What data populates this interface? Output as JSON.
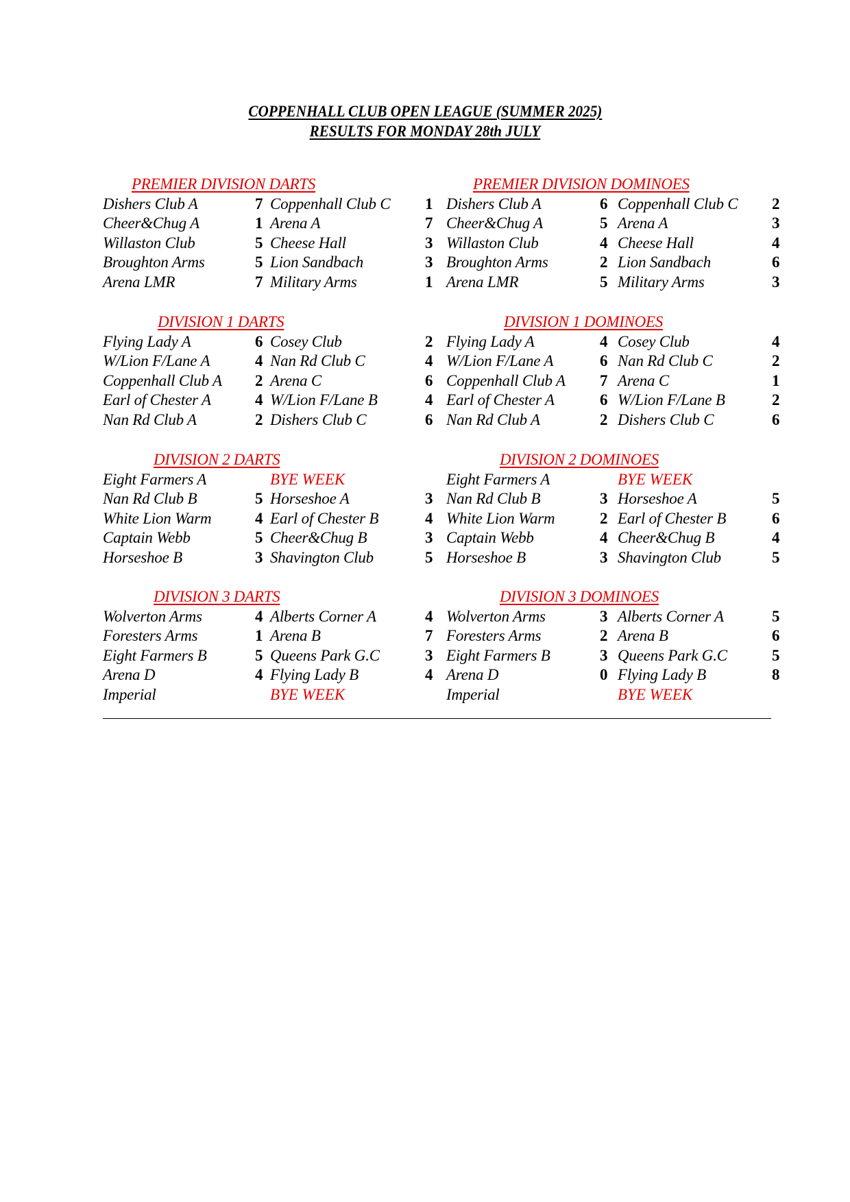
{
  "title": {
    "line1": "COPPENHALL CLUB OPEN LEAGUE (SUMMER 2025)",
    "line2": "RESULTS FOR MONDAY 28th JULY"
  },
  "colors": {
    "heading": "#e00000",
    "text": "#000000"
  },
  "sections": [
    {
      "darts_title": "PREMIER DIVISION DARTS",
      "dominoes_title": "PREMIER DIVISION DOMINOES",
      "darts": [
        {
          "home": "Dishers Club A",
          "home_score": "7",
          "away": "Coppenhall Club C",
          "away_score": "1"
        },
        {
          "home": "Cheer&Chug A",
          "home_score": "1",
          "away": "Arena A",
          "away_score": "7"
        },
        {
          "home": "Willaston Club",
          "home_score": "5",
          "away": "Cheese Hall",
          "away_score": "3"
        },
        {
          "home": "Broughton Arms",
          "home_score": "5",
          "away": "Lion Sandbach",
          "away_score": "3"
        },
        {
          "home": "Arena LMR",
          "home_score": "7",
          "away": "Military Arms",
          "away_score": "1"
        }
      ],
      "dominoes": [
        {
          "home": "Dishers Club A",
          "home_score": "6",
          "away": "Coppenhall Club C",
          "away_score": "2"
        },
        {
          "home": "Cheer&Chug A",
          "home_score": "5",
          "away": "Arena A",
          "away_score": "3"
        },
        {
          "home": "Willaston Club",
          "home_score": "4",
          "away": "Cheese Hall",
          "away_score": "4"
        },
        {
          "home": "Broughton Arms",
          "home_score": "2",
          "away": "Lion Sandbach",
          "away_score": "6"
        },
        {
          "home": "Arena LMR",
          "home_score": "5",
          "away": "Military Arms",
          "away_score": "3"
        }
      ]
    },
    {
      "darts_title": "DIVISION 1 DARTS",
      "dominoes_title": "DIVISION 1 DOMINOES",
      "darts": [
        {
          "home": "Flying Lady A",
          "home_score": "6",
          "away": "Cosey Club",
          "away_score": "2"
        },
        {
          "home": "W/Lion F/Lane A",
          "home_score": "4",
          "away": "Nan Rd Club C",
          "away_score": "4"
        },
        {
          "home": "Coppenhall Club A",
          "home_score": "2",
          "away": "Arena C",
          "away_score": "6"
        },
        {
          "home": "Earl of Chester A",
          "home_score": "4",
          "away": "W/Lion F/Lane B",
          "away_score": "4"
        },
        {
          "home": "Nan Rd Club A",
          "home_score": "2",
          "away": "Dishers Club C",
          "away_score": "6"
        }
      ],
      "dominoes": [
        {
          "home": "Flying Lady A",
          "home_score": "4",
          "away": "Cosey Club",
          "away_score": "4"
        },
        {
          "home": "W/Lion F/Lane A",
          "home_score": "6",
          "away": "Nan Rd Club C",
          "away_score": "2"
        },
        {
          "home": "Coppenhall Club A",
          "home_score": "7",
          "away": "Arena C",
          "away_score": "1"
        },
        {
          "home": "Earl of Chester A",
          "home_score": "6",
          "away": "W/Lion F/Lane B",
          "away_score": "2"
        },
        {
          "home": "Nan Rd Club A",
          "home_score": "2",
          "away": "Dishers Club C",
          "away_score": "6"
        }
      ]
    },
    {
      "darts_title": "DIVISION 2 DARTS",
      "dominoes_title": "DIVISION 2 DOMINOES",
      "darts": [
        {
          "home": "Eight Farmers A",
          "bye": "BYE WEEK"
        },
        {
          "home": "Nan Rd Club B",
          "home_score": "5",
          "away": "Horseshoe A",
          "away_score": "3"
        },
        {
          "home": "White Lion Warm",
          "home_score": "4",
          "away": "Earl of Chester B",
          "away_score": "4"
        },
        {
          "home": "Captain Webb",
          "home_score": "5",
          "away": "Cheer&Chug B",
          "away_score": "3"
        },
        {
          "home": "Horseshoe B",
          "home_score": "3",
          "away": "Shavington Club",
          "away_score": "5"
        }
      ],
      "dominoes": [
        {
          "home": "Eight Farmers A",
          "bye": "BYE WEEK"
        },
        {
          "home": "Nan Rd Club B",
          "home_score": "3",
          "away": "Horseshoe A",
          "away_score": "5"
        },
        {
          "home": "White Lion Warm",
          "home_score": "2",
          "away": "Earl of Chester B",
          "away_score": "6"
        },
        {
          "home": "Captain Webb",
          "home_score": "4",
          "away": "Cheer&Chug B",
          "away_score": "4"
        },
        {
          "home": "Horseshoe B",
          "home_score": "3",
          "away": "Shavington Club",
          "away_score": "5"
        }
      ]
    },
    {
      "darts_title": "DIVISION 3 DARTS",
      "dominoes_title": "DIVISION 3 DOMINOES",
      "darts": [
        {
          "home": "Wolverton Arms",
          "home_score": "4",
          "away": "Alberts Corner A",
          "away_score": "4"
        },
        {
          "home": "Foresters Arms",
          "home_score": "1",
          "away": "Arena B",
          "away_score": "7"
        },
        {
          "home": "Eight Farmers B",
          "home_score": "5",
          "away": "Queens Park G.C",
          "away_score": "3"
        },
        {
          "home": "Arena D",
          "home_score": "4",
          "away": "Flying Lady B",
          "away_score": "4"
        },
        {
          "home": "Imperial",
          "bye": "BYE WEEK"
        }
      ],
      "dominoes": [
        {
          "home": "Wolverton Arms",
          "home_score": "3",
          "away": "Alberts Corner A",
          "away_score": "5"
        },
        {
          "home": "Foresters Arms",
          "home_score": "2",
          "away": "Arena B",
          "away_score": "6"
        },
        {
          "home": "Eight Farmers B",
          "home_score": "3",
          "away": "Queens Park G.C",
          "away_score": "5"
        },
        {
          "home": "Arena D",
          "home_score": "0",
          "away": "Flying Lady B",
          "away_score": "8"
        },
        {
          "home": "Imperial",
          "bye": "BYE WEEK"
        }
      ]
    }
  ]
}
